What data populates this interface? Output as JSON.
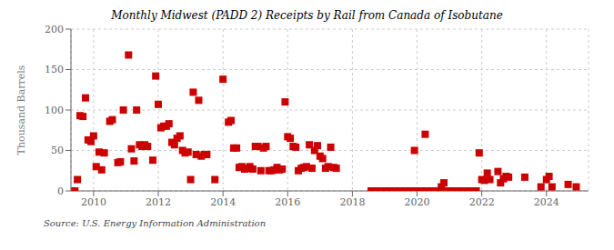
{
  "chart_data": {
    "type": "scatter",
    "title": "Monthly Midwest (PADD 2) Receipts by Rail from Canada of Isobutane",
    "ylabel": "Thousand Barrels",
    "annotation": "Source: U.S. Energy Information Administration",
    "color": "#cc0000",
    "marker": "square",
    "grid": true,
    "xlim": [
      2009.3,
      2025.3
    ],
    "xticks": [
      2010,
      2012,
      2014,
      2016,
      2018,
      2020,
      2022,
      2024
    ],
    "ylim": [
      0,
      200
    ],
    "yticks": [
      0,
      50,
      100,
      150,
      200
    ],
    "x": [
      2009.42,
      2009.5,
      2009.58,
      2009.67,
      2009.75,
      2009.83,
      2009.92,
      2010.0,
      2010.08,
      2010.17,
      2010.25,
      2010.33,
      2010.5,
      2010.58,
      2010.75,
      2010.83,
      2010.92,
      2011.08,
      2011.17,
      2011.25,
      2011.33,
      2011.42,
      2011.5,
      2011.58,
      2011.67,
      2011.83,
      2011.92,
      2012.0,
      2012.08,
      2012.17,
      2012.25,
      2012.33,
      2012.42,
      2012.5,
      2012.58,
      2012.67,
      2012.75,
      2012.83,
      2012.92,
      2013.0,
      2013.08,
      2013.17,
      2013.25,
      2013.33,
      2013.42,
      2013.5,
      2013.75,
      2014.0,
      2014.17,
      2014.25,
      2014.33,
      2014.42,
      2014.5,
      2014.58,
      2014.67,
      2014.75,
      2014.83,
      2014.92,
      2015.0,
      2015.08,
      2015.17,
      2015.25,
      2015.33,
      2015.42,
      2015.5,
      2015.58,
      2015.67,
      2015.75,
      2015.83,
      2015.92,
      2016.0,
      2016.08,
      2016.17,
      2016.25,
      2016.33,
      2016.42,
      2016.5,
      2016.58,
      2016.67,
      2016.75,
      2016.83,
      2016.92,
      2017.0,
      2017.08,
      2017.17,
      2017.25,
      2017.33,
      2017.42,
      2017.5,
      2018.58,
      2018.67,
      2018.75,
      2018.83,
      2018.92,
      2019.0,
      2019.08,
      2019.17,
      2019.25,
      2019.33,
      2019.42,
      2019.5,
      2019.58,
      2019.67,
      2019.75,
      2019.83,
      2019.92,
      2020.0,
      2020.08,
      2020.17,
      2020.25,
      2020.33,
      2020.42,
      2020.5,
      2020.58,
      2020.67,
      2020.75,
      2020.83,
      2020.92,
      2021.0,
      2021.08,
      2021.17,
      2021.25,
      2021.33,
      2021.42,
      2021.5,
      2021.58,
      2021.67,
      2021.75,
      2021.83,
      2021.92,
      2022.0,
      2022.08,
      2022.17,
      2022.25,
      2022.5,
      2022.58,
      2022.67,
      2022.75,
      2022.83,
      2023.33,
      2023.83,
      2024.0,
      2024.08,
      2024.17,
      2024.67,
      2024.92
    ],
    "values": [
      0,
      14,
      93,
      92,
      115,
      63,
      61,
      68,
      30,
      48,
      26,
      47,
      86,
      88,
      35,
      36,
      100,
      168,
      52,
      37,
      100,
      57,
      55,
      57,
      55,
      38,
      142,
      107,
      78,
      80,
      80,
      83,
      60,
      57,
      65,
      68,
      50,
      47,
      48,
      14,
      122,
      45,
      112,
      43,
      45,
      45,
      14,
      138,
      85,
      87,
      53,
      53,
      29,
      30,
      27,
      28,
      30,
      27,
      55,
      55,
      25,
      53,
      55,
      25,
      25,
      26,
      29,
      26,
      27,
      110,
      67,
      65,
      55,
      54,
      25,
      28,
      29,
      30,
      57,
      28,
      50,
      56,
      43,
      40,
      28,
      30,
      54,
      29,
      28,
      0,
      0,
      0,
      0,
      0,
      0,
      0,
      0,
      0,
      0,
      0,
      0,
      0,
      0,
      0,
      0,
      50,
      0,
      0,
      0,
      70,
      0,
      0,
      0,
      0,
      0,
      5,
      10,
      0,
      0,
      0,
      0,
      0,
      0,
      0,
      0,
      0,
      0,
      0,
      0,
      47,
      14,
      13,
      22,
      14,
      24,
      10,
      15,
      18,
      17,
      17,
      5,
      14,
      18,
      5,
      8,
      5
    ]
  }
}
